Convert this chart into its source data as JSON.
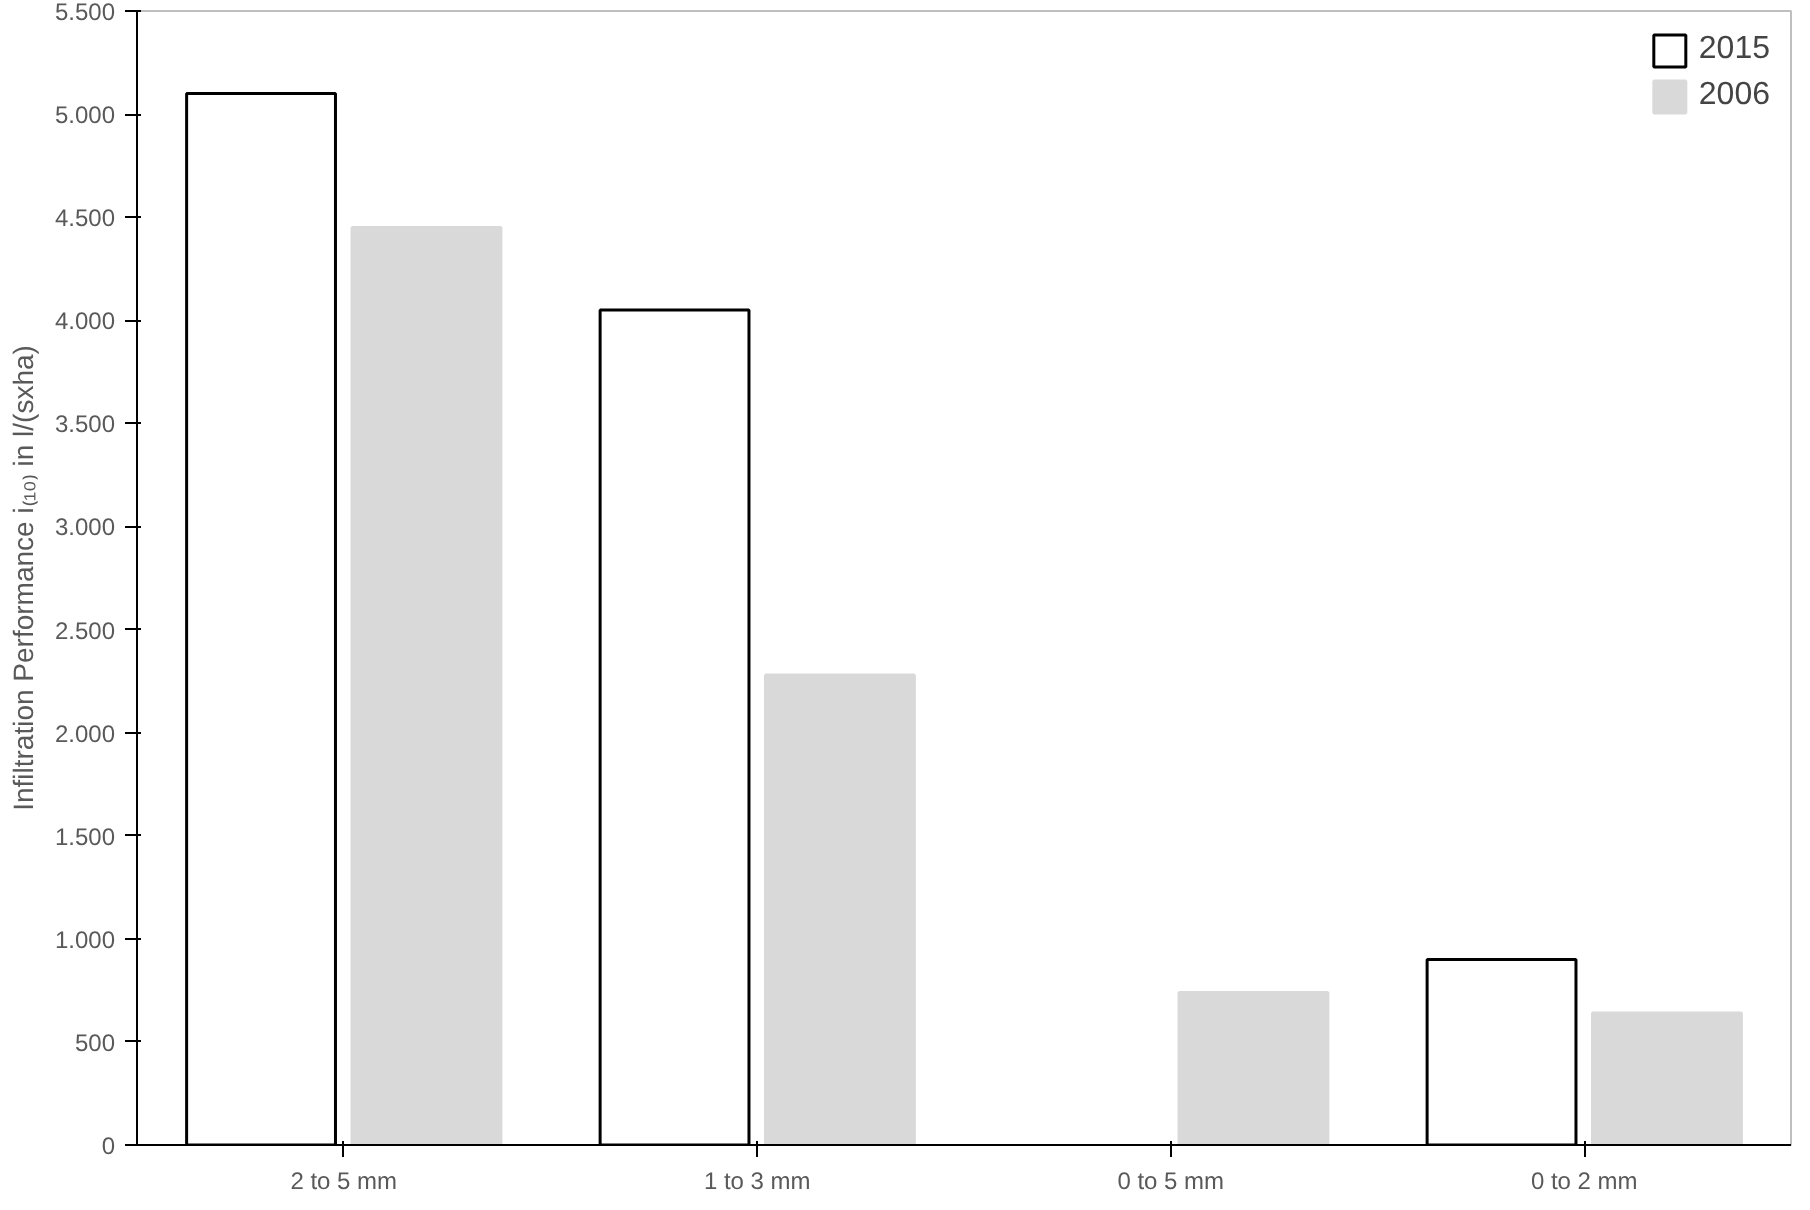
{
  "chart_data": {
    "type": "bar",
    "ylabel": "Infiltration Performance i₍₁₀₎ in l/(sxha)",
    "categories": [
      "2 to 5 mm",
      "1 to 3 mm",
      "0 to 5 mm",
      "0 to 2 mm"
    ],
    "series": [
      {
        "name": "2015",
        "color": "#ffffff",
        "values": [
          5100,
          4050,
          null,
          900
        ]
      },
      {
        "name": "2006",
        "color": "#d9d9d9",
        "values": [
          4450,
          2280,
          740,
          640
        ]
      }
    ],
    "ylim": [
      0,
      5500
    ],
    "yticks": [
      0,
      500,
      {
        "value": 1000,
        "label": "1.000"
      },
      {
        "value": 1500,
        "label": "1.500"
      },
      {
        "value": 2000,
        "label": "2.000"
      },
      {
        "value": 2500,
        "label": "2.500"
      },
      {
        "value": 3000,
        "label": "3.000"
      },
      {
        "value": 3500,
        "label": "3.500"
      },
      {
        "value": 4000,
        "label": "4.000"
      },
      {
        "value": 4500,
        "label": "4.500"
      },
      {
        "value": 5000,
        "label": "5.000"
      },
      {
        "value": 5500,
        "label": "5.500"
      }
    ],
    "grid": false,
    "legend": "top right"
  }
}
